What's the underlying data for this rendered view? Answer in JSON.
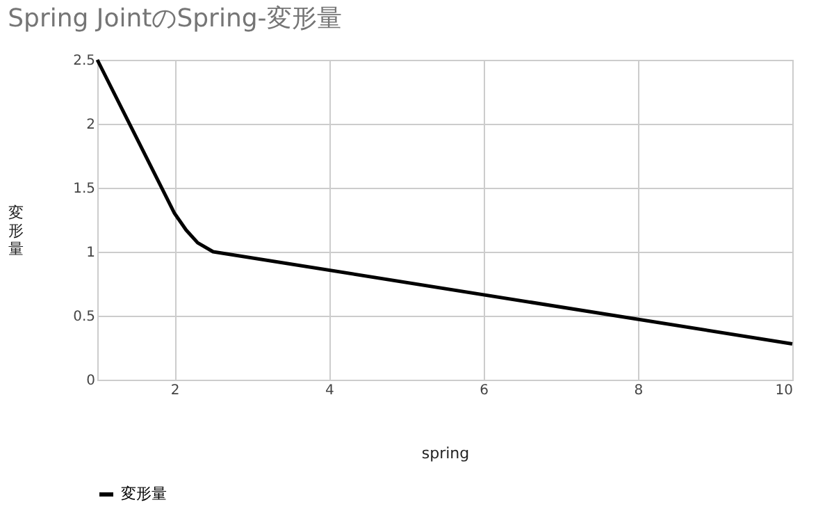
{
  "chart_data": {
    "type": "line",
    "title": "Spring JointのSpring-変形量",
    "xlabel": "spring",
    "ylabel": "変形量",
    "x": [
      1,
      1.5,
      2,
      2.15,
      2.3,
      2.5,
      10
    ],
    "series": [
      {
        "name": "変形量",
        "color": "#000000",
        "values": [
          2.5,
          1.9,
          1.3,
          1.17,
          1.07,
          1.0,
          0.28
        ]
      }
    ],
    "xlim": [
      1,
      10
    ],
    "xticks": [
      2,
      4,
      6,
      8,
      10
    ],
    "ylim": [
      0,
      2.5
    ],
    "yticks": [
      0,
      0.5,
      1,
      1.5,
      2,
      2.5
    ],
    "grid": true,
    "legend": "bottom",
    "marker": "none",
    "line_style": "solid"
  }
}
